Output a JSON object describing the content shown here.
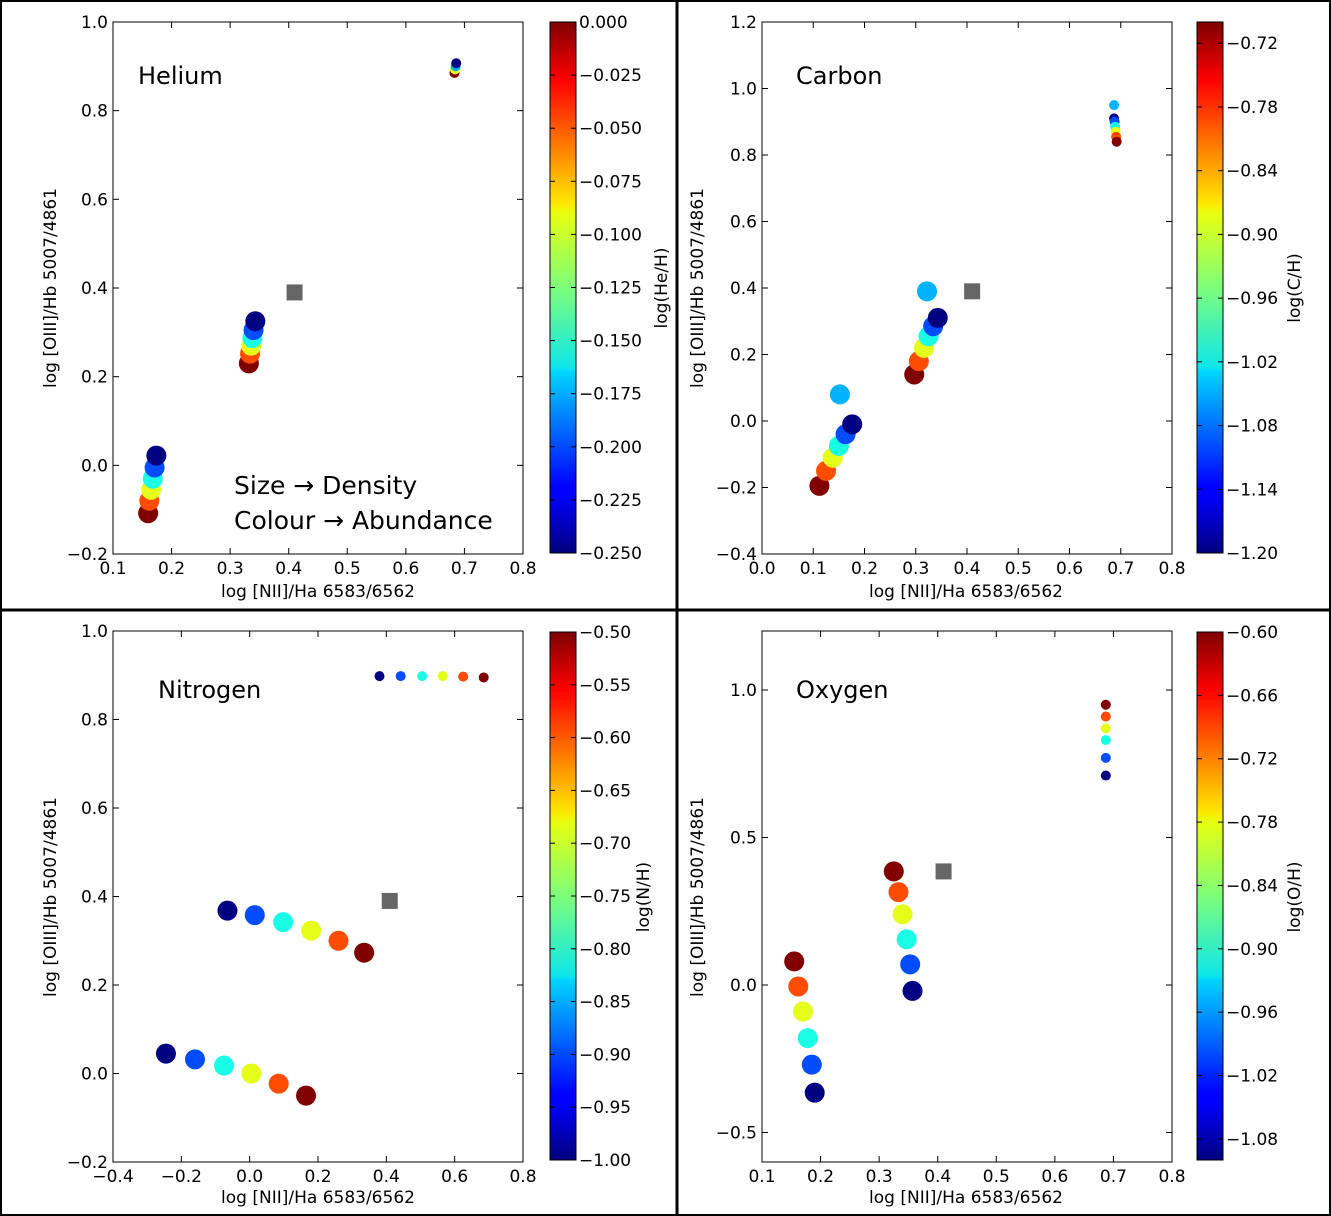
{
  "chart_data": [
    {
      "type": "scatter",
      "title": "Helium",
      "xlabel": "log [NII]/Ha 6583/6562",
      "ylabel": "log [OIII]/Hb 5007/4861",
      "xlim": [
        0.1,
        0.8
      ],
      "ylim": [
        -0.2,
        1.0
      ],
      "xticks": [
        "0.1",
        "0.2",
        "0.3",
        "0.4",
        "0.5",
        "0.6",
        "0.7",
        "0.8"
      ],
      "yticks": [
        "−0.2",
        "0.0",
        "0.2",
        "0.4",
        "0.6",
        "0.8",
        "1.0"
      ],
      "colorbar": {
        "label": "log(He/H)",
        "range": [
          -0.25,
          0.0
        ],
        "ticks": [
          "0.000",
          "−0.025",
          "−0.050",
          "−0.075",
          "−0.100",
          "−0.125",
          "−0.150",
          "−0.175",
          "−0.200",
          "−0.225",
          "−0.250"
        ]
      },
      "annotations": [
        "Size → Density",
        "Colour → Abundance"
      ],
      "points": [
        {
          "x": 0.16,
          "y": -0.108,
          "c": 0.0,
          "size": "large"
        },
        {
          "x": 0.162,
          "y": -0.08,
          "c": -0.05,
          "size": "large"
        },
        {
          "x": 0.165,
          "y": -0.055,
          "c": -0.1,
          "size": "large"
        },
        {
          "x": 0.168,
          "y": -0.03,
          "c": -0.15,
          "size": "large"
        },
        {
          "x": 0.171,
          "y": -0.005,
          "c": -0.2,
          "size": "large"
        },
        {
          "x": 0.174,
          "y": 0.022,
          "c": -0.25,
          "size": "large"
        },
        {
          "x": 0.332,
          "y": 0.23,
          "c": 0.0,
          "size": "large"
        },
        {
          "x": 0.334,
          "y": 0.252,
          "c": -0.05,
          "size": "large"
        },
        {
          "x": 0.336,
          "y": 0.27,
          "c": -0.1,
          "size": "large"
        },
        {
          "x": 0.338,
          "y": 0.287,
          "c": -0.15,
          "size": "large"
        },
        {
          "x": 0.34,
          "y": 0.305,
          "c": -0.2,
          "size": "large"
        },
        {
          "x": 0.343,
          "y": 0.325,
          "c": -0.25,
          "size": "large"
        },
        {
          "x": 0.683,
          "y": 0.885,
          "c": 0.0,
          "size": "small"
        },
        {
          "x": 0.684,
          "y": 0.893,
          "c": -0.1,
          "size": "small"
        },
        {
          "x": 0.685,
          "y": 0.9,
          "c": -0.175,
          "size": "small"
        },
        {
          "x": 0.686,
          "y": 0.907,
          "c": -0.25,
          "size": "small"
        }
      ],
      "reference": {
        "x": 0.41,
        "y": 0.39,
        "marker": "square"
      }
    },
    {
      "type": "scatter",
      "title": "Carbon",
      "xlabel": "log [NII]/Ha 6583/6562",
      "ylabel": "log [OIII]/Hb 5007/4861",
      "xlim": [
        0.0,
        0.8
      ],
      "ylim": [
        -0.4,
        1.2
      ],
      "xticks": [
        "0.0",
        "0.1",
        "0.2",
        "0.3",
        "0.4",
        "0.5",
        "0.6",
        "0.7",
        "0.8"
      ],
      "yticks": [
        "−0.4",
        "−0.2",
        "0.0",
        "0.2",
        "0.4",
        "0.6",
        "0.8",
        "1.0",
        "1.2"
      ],
      "colorbar": {
        "label": "log(C/H)",
        "range": [
          -1.2,
          -0.7
        ],
        "ticks": [
          "−0.72",
          "−0.78",
          "−0.84",
          "−0.90",
          "−0.96",
          "−1.02",
          "−1.08",
          "−1.14",
          "−1.20"
        ]
      },
      "points": [
        {
          "x": 0.112,
          "y": -0.195,
          "c": -0.7,
          "size": "large"
        },
        {
          "x": 0.125,
          "y": -0.15,
          "c": -0.8,
          "size": "large"
        },
        {
          "x": 0.138,
          "y": -0.11,
          "c": -0.9,
          "size": "large"
        },
        {
          "x": 0.15,
          "y": -0.075,
          "c": -1.0,
          "size": "large"
        },
        {
          "x": 0.163,
          "y": -0.04,
          "c": -1.1,
          "size": "large"
        },
        {
          "x": 0.176,
          "y": -0.01,
          "c": -1.2,
          "size": "large"
        },
        {
          "x": 0.152,
          "y": 0.08,
          "c": -1.05,
          "size": "large"
        },
        {
          "x": 0.297,
          "y": 0.14,
          "c": -0.7,
          "size": "large"
        },
        {
          "x": 0.306,
          "y": 0.18,
          "c": -0.8,
          "size": "large"
        },
        {
          "x": 0.316,
          "y": 0.22,
          "c": -0.9,
          "size": "large"
        },
        {
          "x": 0.325,
          "y": 0.255,
          "c": -1.0,
          "size": "large"
        },
        {
          "x": 0.334,
          "y": 0.285,
          "c": -1.1,
          "size": "large"
        },
        {
          "x": 0.343,
          "y": 0.31,
          "c": -1.2,
          "size": "large"
        },
        {
          "x": 0.322,
          "y": 0.39,
          "c": -1.05,
          "size": "large"
        },
        {
          "x": 0.687,
          "y": 0.95,
          "c": -1.05,
          "size": "small"
        },
        {
          "x": 0.687,
          "y": 0.91,
          "c": -1.2,
          "size": "small"
        },
        {
          "x": 0.688,
          "y": 0.9,
          "c": -1.1,
          "size": "small"
        },
        {
          "x": 0.689,
          "y": 0.885,
          "c": -1.0,
          "size": "small"
        },
        {
          "x": 0.69,
          "y": 0.87,
          "c": -0.9,
          "size": "small"
        },
        {
          "x": 0.691,
          "y": 0.855,
          "c": -0.8,
          "size": "small"
        },
        {
          "x": 0.692,
          "y": 0.84,
          "c": -0.7,
          "size": "small"
        }
      ],
      "reference": {
        "x": 0.41,
        "y": 0.39,
        "marker": "square"
      }
    },
    {
      "type": "scatter",
      "title": "Nitrogen",
      "xlabel": "log [NII]/Ha 6583/6562",
      "ylabel": "log [OIII]/Hb 5007/4861",
      "xlim": [
        -0.4,
        0.8
      ],
      "ylim": [
        -0.2,
        1.0
      ],
      "xticks": [
        "−0.4",
        "−0.2",
        "0.0",
        "0.2",
        "0.4",
        "0.6",
        "0.8"
      ],
      "yticks": [
        "−0.2",
        "0.0",
        "0.2",
        "0.4",
        "0.6",
        "0.8",
        "1.0"
      ],
      "colorbar": {
        "label": "log(N/H)",
        "range": [
          -1.0,
          -0.5
        ],
        "ticks": [
          "−0.50",
          "−0.55",
          "−0.60",
          "−0.65",
          "−0.70",
          "−0.75",
          "−0.80",
          "−0.85",
          "−0.90",
          "−0.95",
          "−1.00"
        ]
      },
      "points": [
        {
          "x": -0.245,
          "y": 0.045,
          "c": -1.0,
          "size": "large"
        },
        {
          "x": -0.16,
          "y": 0.032,
          "c": -0.9,
          "size": "large"
        },
        {
          "x": -0.075,
          "y": 0.018,
          "c": -0.8,
          "size": "large"
        },
        {
          "x": 0.005,
          "y": 0.0,
          "c": -0.7,
          "size": "large"
        },
        {
          "x": 0.085,
          "y": -0.023,
          "c": -0.6,
          "size": "large"
        },
        {
          "x": 0.165,
          "y": -0.05,
          "c": -0.5,
          "size": "large"
        },
        {
          "x": -0.065,
          "y": 0.368,
          "c": -1.0,
          "size": "large"
        },
        {
          "x": 0.015,
          "y": 0.358,
          "c": -0.9,
          "size": "large"
        },
        {
          "x": 0.098,
          "y": 0.342,
          "c": -0.8,
          "size": "large"
        },
        {
          "x": 0.18,
          "y": 0.323,
          "c": -0.7,
          "size": "large"
        },
        {
          "x": 0.26,
          "y": 0.3,
          "c": -0.6,
          "size": "large"
        },
        {
          "x": 0.335,
          "y": 0.273,
          "c": -0.5,
          "size": "large"
        },
        {
          "x": 0.38,
          "y": 0.898,
          "c": -1.0,
          "size": "small"
        },
        {
          "x": 0.442,
          "y": 0.898,
          "c": -0.9,
          "size": "small"
        },
        {
          "x": 0.505,
          "y": 0.898,
          "c": -0.8,
          "size": "small"
        },
        {
          "x": 0.565,
          "y": 0.898,
          "c": -0.7,
          "size": "small"
        },
        {
          "x": 0.625,
          "y": 0.897,
          "c": -0.6,
          "size": "small"
        },
        {
          "x": 0.685,
          "y": 0.895,
          "c": -0.5,
          "size": "small"
        }
      ],
      "reference": {
        "x": 0.41,
        "y": 0.39,
        "marker": "square"
      }
    },
    {
      "type": "scatter",
      "title": "Oxygen",
      "xlabel": "log [NII]/Ha 6583/6562",
      "ylabel": "log [OIII]/Hb 5007/4861",
      "xlim": [
        0.1,
        0.8
      ],
      "ylim": [
        -0.6,
        1.2
      ],
      "xticks": [
        "0.1",
        "0.2",
        "0.3",
        "0.4",
        "0.5",
        "0.6",
        "0.7",
        "0.8"
      ],
      "yticks": [
        "−0.5",
        "0.0",
        "0.5",
        "1.0"
      ],
      "yticks_values": [
        -0.5,
        0.0,
        0.5,
        1.0
      ],
      "colorbar": {
        "label": "log(O/H)",
        "range": [
          -1.1,
          -0.6
        ],
        "ticks": [
          "−0.60",
          "−0.66",
          "−0.72",
          "−0.78",
          "−0.84",
          "−0.90",
          "−0.96",
          "−1.02",
          "−1.08"
        ]
      },
      "points": [
        {
          "x": 0.155,
          "y": 0.08,
          "c": -0.6,
          "size": "large"
        },
        {
          "x": 0.162,
          "y": -0.005,
          "c": -0.7,
          "size": "large"
        },
        {
          "x": 0.17,
          "y": -0.09,
          "c": -0.8,
          "size": "large"
        },
        {
          "x": 0.178,
          "y": -0.18,
          "c": -0.9,
          "size": "large"
        },
        {
          "x": 0.185,
          "y": -0.27,
          "c": -1.0,
          "size": "large"
        },
        {
          "x": 0.19,
          "y": -0.365,
          "c": -1.1,
          "size": "large"
        },
        {
          "x": 0.325,
          "y": 0.385,
          "c": -0.6,
          "size": "large"
        },
        {
          "x": 0.333,
          "y": 0.315,
          "c": -0.7,
          "size": "large"
        },
        {
          "x": 0.34,
          "y": 0.24,
          "c": -0.8,
          "size": "large"
        },
        {
          "x": 0.347,
          "y": 0.155,
          "c": -0.9,
          "size": "large"
        },
        {
          "x": 0.353,
          "y": 0.07,
          "c": -1.0,
          "size": "large"
        },
        {
          "x": 0.357,
          "y": -0.02,
          "c": -1.1,
          "size": "large"
        },
        {
          "x": 0.687,
          "y": 0.95,
          "c": -0.6,
          "size": "small"
        },
        {
          "x": 0.687,
          "y": 0.91,
          "c": -0.7,
          "size": "small"
        },
        {
          "x": 0.687,
          "y": 0.87,
          "c": -0.8,
          "size": "small"
        },
        {
          "x": 0.687,
          "y": 0.83,
          "c": -0.9,
          "size": "small"
        },
        {
          "x": 0.687,
          "y": 0.77,
          "c": -1.0,
          "size": "small"
        },
        {
          "x": 0.687,
          "y": 0.71,
          "c": -1.1,
          "size": "small"
        }
      ],
      "reference": {
        "x": 0.41,
        "y": 0.385,
        "marker": "square"
      }
    }
  ],
  "colors": {
    "reference_square": "#666666",
    "divider": "#000000"
  }
}
